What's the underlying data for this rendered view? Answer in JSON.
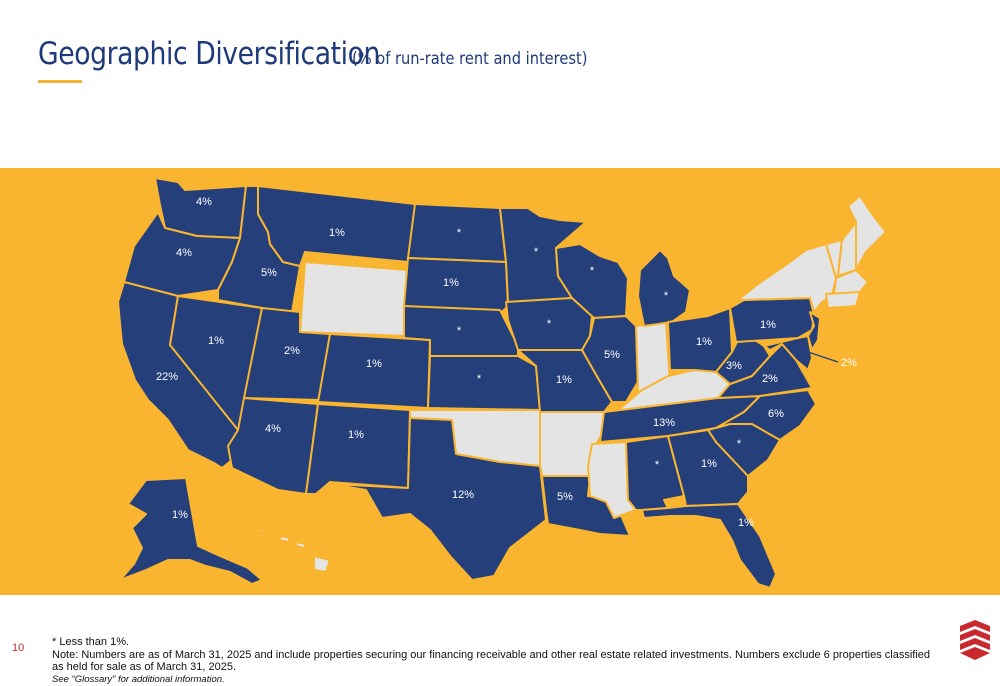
{
  "header": {
    "title": "Geographic Diversification",
    "subtitle": "(% of run-rate rent and interest)"
  },
  "colors": {
    "navy": "#243f7a",
    "gold": "#f9b52f",
    "no_data_gray": "#e4e4e4",
    "accent_red": "#c8292e"
  },
  "map": {
    "states": {
      "WA": "4%",
      "OR": "4%",
      "CA": "22%",
      "NV": "1%",
      "ID": "5%",
      "MT": "1%",
      "UT": "2%",
      "AZ": "4%",
      "CO": "1%",
      "NM": "1%",
      "ND": "*",
      "SD": "1%",
      "NE": "*",
      "KS": "*",
      "TX": "12%",
      "MN": "*",
      "IA": "*",
      "MO": "1%",
      "LA": "5%",
      "WI": "*",
      "IL": "5%",
      "MI": "*",
      "OH": "1%",
      "PA": "1%",
      "WV": "3%",
      "VA": "2%",
      "NC": "6%",
      "SC": "*",
      "GA": "1%",
      "AL": "*",
      "TN": "13%",
      "FL": "1%",
      "AK": "1%",
      "NJ_DE_MD": "2%"
    },
    "no_data_states": [
      "WY",
      "OK",
      "AR",
      "MS",
      "KY",
      "IN",
      "HI",
      "NY",
      "ME",
      "VT",
      "NH",
      "MA",
      "CT",
      "RI"
    ]
  },
  "footer": {
    "page_number": "10",
    "note_star": "* Less than 1%.",
    "note_main": "Note: Numbers are as of March 31, 2025 and include properties securing our financing receivable and other real estate related investments. Numbers exclude 6 properties classified as held for sale as of March 31, 2025.",
    "note_glossary": "See “Glossary” for additional information."
  },
  "logo": {
    "icon": "stacked-chevrons-logo"
  }
}
